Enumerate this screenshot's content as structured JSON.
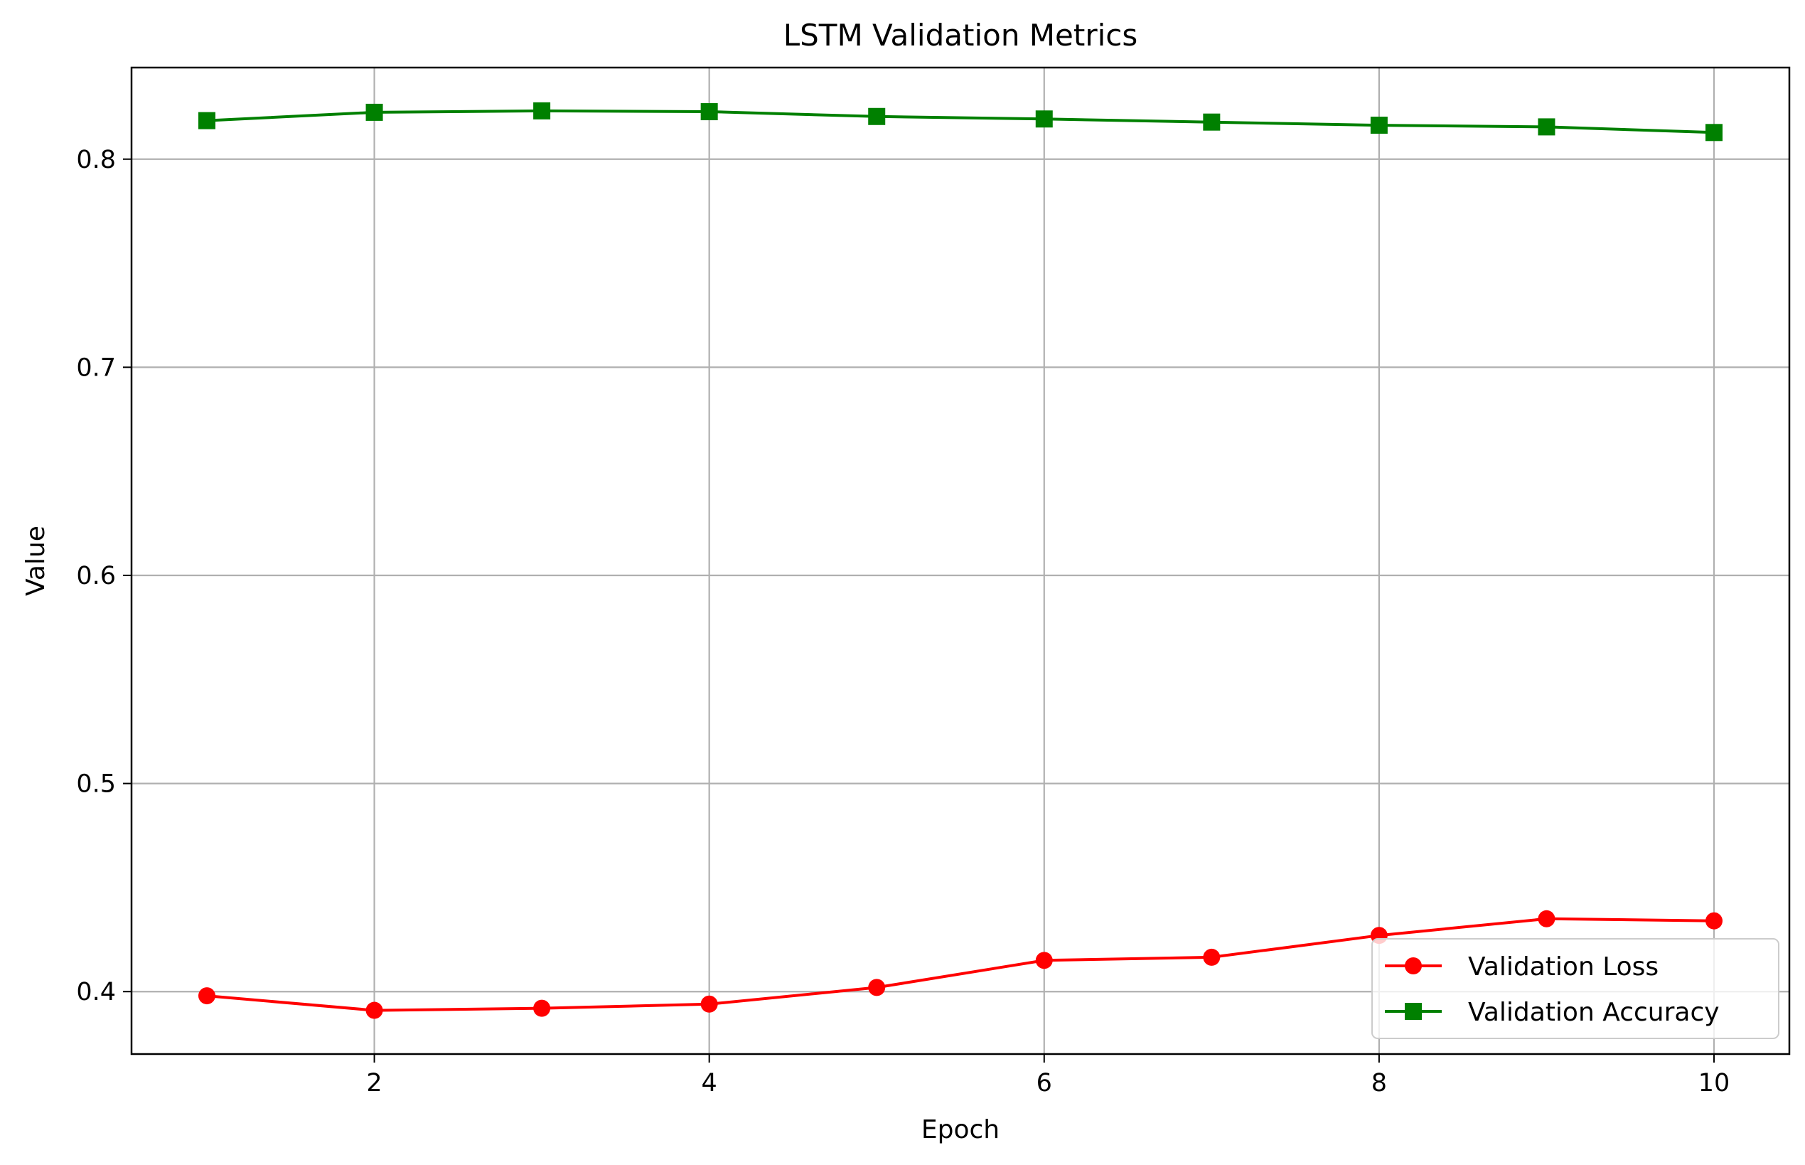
{
  "chart_data": {
    "type": "line",
    "title": "LSTM Validation Metrics",
    "xlabel": "Epoch",
    "ylabel": "Value",
    "xlim": [
      0.55,
      10.45
    ],
    "ylim": [
      0.37,
      0.844
    ],
    "xticks": [
      2,
      4,
      6,
      8,
      10
    ],
    "xtick_labels": [
      "2",
      "4",
      "6",
      "8",
      "10"
    ],
    "yticks": [
      0.4,
      0.5,
      0.6,
      0.7,
      0.8
    ],
    "ytick_labels": [
      "0.4",
      "0.5",
      "0.6",
      "0.7",
      "0.8"
    ],
    "grid": true,
    "legend_position": "lower-right",
    "x": [
      1,
      2,
      3,
      4,
      5,
      6,
      7,
      8,
      9,
      10
    ],
    "series": [
      {
        "name": "Validation Loss",
        "color": "#ff0000",
        "marker": "circle",
        "values": [
          0.398,
          0.391,
          0.392,
          0.394,
          0.402,
          0.415,
          0.4165,
          0.427,
          0.435,
          0.434
        ]
      },
      {
        "name": "Validation Accuracy",
        "color": "#008000",
        "marker": "square",
        "values": [
          0.8185,
          0.8225,
          0.8232,
          0.8228,
          0.8205,
          0.8193,
          0.8178,
          0.8163,
          0.8155,
          0.8128
        ]
      }
    ]
  }
}
